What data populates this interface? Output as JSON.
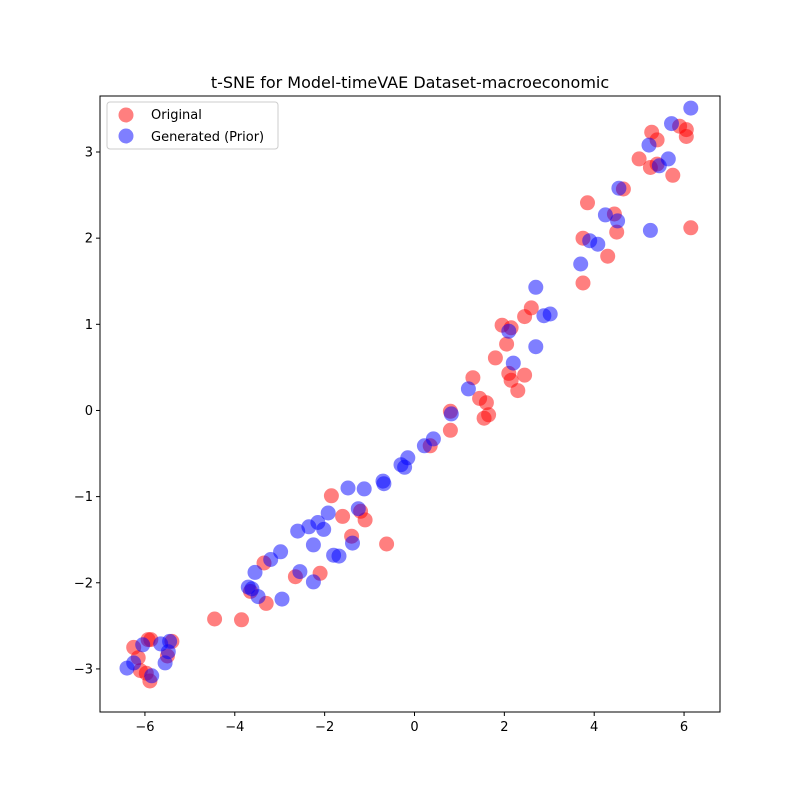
{
  "chart_data": {
    "type": "scatter",
    "title": "t-SNE for Model-timeVAE Dataset-macroeconomic",
    "xlabel": "",
    "ylabel": "",
    "xlim": [
      -7,
      6.8
    ],
    "ylim": [
      -3.5,
      3.65
    ],
    "xticks": [
      -6,
      -4,
      -2,
      0,
      2,
      4,
      6
    ],
    "yticks": [
      -3,
      -2,
      -1,
      0,
      1,
      2,
      3
    ],
    "xtick_labels": [
      "−6",
      "−4",
      "−2",
      "0",
      "2",
      "4",
      "6"
    ],
    "ytick_labels": [
      "−3",
      "−2",
      "−1",
      "0",
      "1",
      "2",
      "3"
    ],
    "grid": false,
    "legend": "top-left",
    "series": [
      {
        "name": "Original",
        "color": "#ff0000",
        "points": [
          [
            -6.25,
            -2.75
          ],
          [
            -6.15,
            -2.87
          ],
          [
            -6.1,
            -3.02
          ],
          [
            -5.97,
            -3.05
          ],
          [
            -5.93,
            -2.66
          ],
          [
            -5.87,
            -2.66
          ],
          [
            -5.89,
            -3.14
          ],
          [
            -5.5,
            -2.85
          ],
          [
            -5.4,
            -2.68
          ],
          [
            -4.45,
            -2.42
          ],
          [
            -3.85,
            -2.43
          ],
          [
            -3.65,
            -2.1
          ],
          [
            -3.35,
            -1.77
          ],
          [
            -3.3,
            -2.24
          ],
          [
            -2.65,
            -1.93
          ],
          [
            -2.1,
            -1.89
          ],
          [
            -1.85,
            -0.99
          ],
          [
            -1.6,
            -1.23
          ],
          [
            -1.4,
            -1.46
          ],
          [
            -1.2,
            -1.17
          ],
          [
            -1.1,
            -1.27
          ],
          [
            -0.62,
            -1.55
          ],
          [
            0.35,
            -0.41
          ],
          [
            0.8,
            -0.01
          ],
          [
            0.8,
            -0.23
          ],
          [
            1.3,
            0.38
          ],
          [
            1.45,
            0.14
          ],
          [
            1.55,
            -0.09
          ],
          [
            1.6,
            0.09
          ],
          [
            1.65,
            -0.05
          ],
          [
            1.8,
            0.61
          ],
          [
            1.95,
            0.99
          ],
          [
            2.05,
            0.77
          ],
          [
            2.1,
            0.43
          ],
          [
            2.15,
            0.96
          ],
          [
            2.15,
            0.35
          ],
          [
            2.3,
            0.23
          ],
          [
            2.45,
            0.41
          ],
          [
            2.45,
            1.09
          ],
          [
            2.6,
            1.19
          ],
          [
            3.75,
            1.48
          ],
          [
            3.75,
            2.0
          ],
          [
            3.85,
            2.41
          ],
          [
            4.3,
            1.79
          ],
          [
            4.45,
            2.28
          ],
          [
            4.5,
            2.07
          ],
          [
            4.65,
            2.57
          ],
          [
            5.0,
            2.92
          ],
          [
            5.25,
            2.82
          ],
          [
            5.28,
            3.23
          ],
          [
            5.4,
            3.14
          ],
          [
            5.4,
            2.86
          ],
          [
            5.75,
            2.73
          ],
          [
            5.9,
            3.3
          ],
          [
            6.05,
            3.26
          ],
          [
            6.05,
            3.18
          ],
          [
            6.15,
            2.12
          ]
        ]
      },
      {
        "name": "Generated (Prior)",
        "color": "#0000ff",
        "points": [
          [
            -6.4,
            -2.99
          ],
          [
            -6.25,
            -2.93
          ],
          [
            -6.05,
            -2.72
          ],
          [
            -5.85,
            -3.08
          ],
          [
            -5.65,
            -2.71
          ],
          [
            -5.55,
            -2.93
          ],
          [
            -5.48,
            -2.8
          ],
          [
            -5.45,
            -2.68
          ],
          [
            -3.7,
            -2.05
          ],
          [
            -3.62,
            -2.07
          ],
          [
            -3.55,
            -1.88
          ],
          [
            -3.48,
            -2.16
          ],
          [
            -3.2,
            -1.73
          ],
          [
            -2.98,
            -1.64
          ],
          [
            -2.95,
            -2.19
          ],
          [
            -2.6,
            -1.4
          ],
          [
            -2.55,
            -1.87
          ],
          [
            -2.35,
            -1.35
          ],
          [
            -2.25,
            -1.56
          ],
          [
            -2.25,
            -1.99
          ],
          [
            -2.15,
            -1.3
          ],
          [
            -2.02,
            -1.38
          ],
          [
            -1.92,
            -1.19
          ],
          [
            -1.8,
            -1.68
          ],
          [
            -1.68,
            -1.69
          ],
          [
            -1.48,
            -0.9
          ],
          [
            -1.38,
            -1.54
          ],
          [
            -1.25,
            -1.14
          ],
          [
            -1.12,
            -0.91
          ],
          [
            -0.7,
            -0.82
          ],
          [
            -0.68,
            -0.85
          ],
          [
            -0.3,
            -0.63
          ],
          [
            -0.22,
            -0.66
          ],
          [
            -0.15,
            -0.55
          ],
          [
            0.22,
            -0.41
          ],
          [
            0.42,
            -0.33
          ],
          [
            0.82,
            -0.04
          ],
          [
            1.2,
            0.25
          ],
          [
            2.1,
            0.92
          ],
          [
            2.2,
            0.55
          ],
          [
            2.7,
            1.43
          ],
          [
            2.7,
            0.74
          ],
          [
            2.88,
            1.1
          ],
          [
            3.02,
            1.12
          ],
          [
            3.7,
            1.7
          ],
          [
            3.9,
            1.97
          ],
          [
            4.08,
            1.93
          ],
          [
            4.25,
            2.27
          ],
          [
            4.52,
            2.2
          ],
          [
            4.55,
            2.58
          ],
          [
            5.22,
            3.08
          ],
          [
            5.25,
            2.09
          ],
          [
            5.45,
            2.84
          ],
          [
            5.65,
            2.92
          ],
          [
            5.72,
            3.33
          ],
          [
            6.15,
            3.51
          ]
        ]
      }
    ]
  }
}
